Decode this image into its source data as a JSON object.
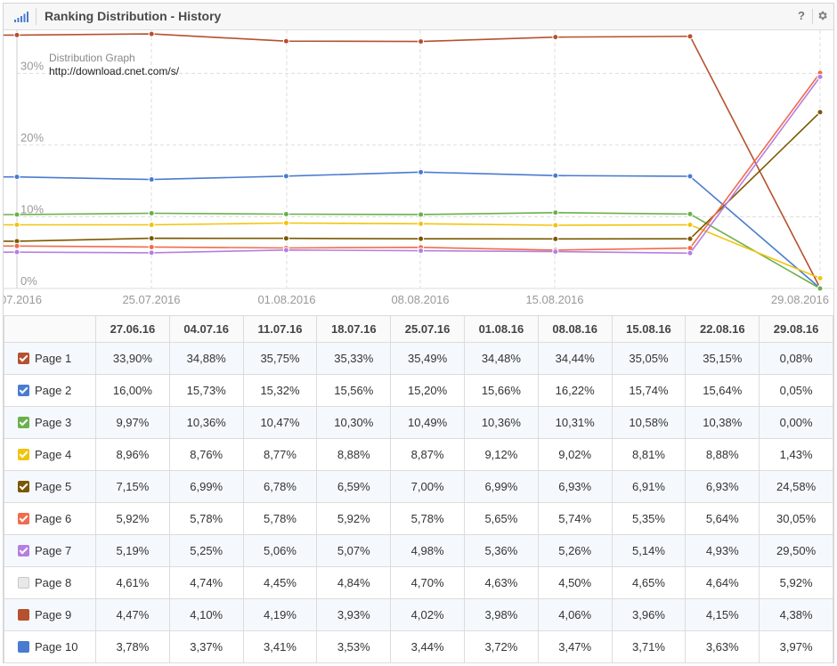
{
  "header": {
    "title": "Ranking Distribution - History",
    "help_label": "?",
    "icons": [
      "bar-signal-icon",
      "gear-icon"
    ]
  },
  "chart_data": {
    "type": "line",
    "annotation": [
      "Distribution Graph",
      "http://download.cnet.com/s/"
    ],
    "x_tick_labels": [
      "07.2016",
      "25.07.2016",
      "01.08.2016",
      "08.08.2016",
      "15.08.2016",
      "29.08.2016"
    ],
    "y_tick_labels": [
      "0%",
      "10%",
      "20%",
      "30%"
    ],
    "ylim": [
      0,
      36
    ],
    "grid": true,
    "categories": [
      "27.06.16",
      "04.07.16",
      "11.07.16",
      "18.07.16",
      "25.07.16",
      "01.08.16",
      "08.08.16",
      "15.08.16",
      "22.08.16",
      "29.08.16"
    ],
    "plotted_from_index": 3,
    "series": [
      {
        "name": "Page 1",
        "color": "#b5512f",
        "values": [
          33.9,
          34.88,
          35.75,
          35.33,
          35.49,
          34.48,
          34.44,
          35.05,
          35.15,
          0.08
        ]
      },
      {
        "name": "Page 2",
        "color": "#4a7bd0",
        "values": [
          16.0,
          15.73,
          15.32,
          15.56,
          15.2,
          15.66,
          16.22,
          15.74,
          15.64,
          0.05
        ]
      },
      {
        "name": "Page 3",
        "color": "#6ab04c",
        "values": [
          9.97,
          10.36,
          10.47,
          10.3,
          10.49,
          10.36,
          10.31,
          10.58,
          10.38,
          0.0
        ]
      },
      {
        "name": "Page 4",
        "color": "#f1c40f",
        "values": [
          8.96,
          8.76,
          8.77,
          8.88,
          8.87,
          9.12,
          9.02,
          8.81,
          8.88,
          1.43
        ]
      },
      {
        "name": "Page 5",
        "color": "#7a5800",
        "values": [
          7.15,
          6.99,
          6.78,
          6.59,
          7.0,
          6.99,
          6.93,
          6.91,
          6.93,
          24.58
        ]
      },
      {
        "name": "Page 6",
        "color": "#f26b4e",
        "values": [
          5.92,
          5.78,
          5.78,
          5.92,
          5.78,
          5.65,
          5.74,
          5.35,
          5.64,
          30.05
        ]
      },
      {
        "name": "Page 7",
        "color": "#b57fe0",
        "values": [
          5.19,
          5.25,
          5.06,
          5.07,
          4.98,
          5.36,
          5.26,
          5.14,
          4.93,
          29.5
        ]
      }
    ]
  },
  "table": {
    "dates": [
      "27.06.16",
      "04.07.16",
      "11.07.16",
      "18.07.16",
      "25.07.16",
      "01.08.16",
      "08.08.16",
      "15.08.16",
      "22.08.16",
      "29.08.16"
    ],
    "rows": [
      {
        "label": "Page 1",
        "color": "#b5512f",
        "checked": true,
        "values": [
          "33,90%",
          "34,88%",
          "35,75%",
          "35,33%",
          "35,49%",
          "34,48%",
          "34,44%",
          "35,05%",
          "35,15%",
          "0,08%"
        ]
      },
      {
        "label": "Page 2",
        "color": "#4a7bd0",
        "checked": true,
        "values": [
          "16,00%",
          "15,73%",
          "15,32%",
          "15,56%",
          "15,20%",
          "15,66%",
          "16,22%",
          "15,74%",
          "15,64%",
          "0,05%"
        ]
      },
      {
        "label": "Page 3",
        "color": "#6ab04c",
        "checked": true,
        "values": [
          "9,97%",
          "10,36%",
          "10,47%",
          "10,30%",
          "10,49%",
          "10,36%",
          "10,31%",
          "10,58%",
          "10,38%",
          "0,00%"
        ]
      },
      {
        "label": "Page 4",
        "color": "#f1c40f",
        "checked": true,
        "values": [
          "8,96%",
          "8,76%",
          "8,77%",
          "8,88%",
          "8,87%",
          "9,12%",
          "9,02%",
          "8,81%",
          "8,88%",
          "1,43%"
        ]
      },
      {
        "label": "Page 5",
        "color": "#7a5800",
        "checked": true,
        "values": [
          "7,15%",
          "6,99%",
          "6,78%",
          "6,59%",
          "7,00%",
          "6,99%",
          "6,93%",
          "6,91%",
          "6,93%",
          "24,58%"
        ]
      },
      {
        "label": "Page 6",
        "color": "#f26b4e",
        "checked": true,
        "values": [
          "5,92%",
          "5,78%",
          "5,78%",
          "5,92%",
          "5,78%",
          "5,65%",
          "5,74%",
          "5,35%",
          "5,64%",
          "30,05%"
        ]
      },
      {
        "label": "Page 7",
        "color": "#b57fe0",
        "checked": true,
        "values": [
          "5,19%",
          "5,25%",
          "5,06%",
          "5,07%",
          "4,98%",
          "5,36%",
          "5,26%",
          "5,14%",
          "4,93%",
          "29,50%"
        ]
      },
      {
        "label": "Page 8",
        "color": "#e8e8e8",
        "checked": false,
        "values": [
          "4,61%",
          "4,74%",
          "4,45%",
          "4,84%",
          "4,70%",
          "4,63%",
          "4,50%",
          "4,65%",
          "4,64%",
          "5,92%"
        ]
      },
      {
        "label": "Page 9",
        "color": "#b5512f",
        "checked": false,
        "values": [
          "4,47%",
          "4,10%",
          "4,19%",
          "3,93%",
          "4,02%",
          "3,98%",
          "4,06%",
          "3,96%",
          "4,15%",
          "4,38%"
        ]
      },
      {
        "label": "Page 10",
        "color": "#4a7bd0",
        "checked": false,
        "values": [
          "3,78%",
          "3,37%",
          "3,41%",
          "3,53%",
          "3,44%",
          "3,72%",
          "3,47%",
          "3,71%",
          "3,63%",
          "3,97%"
        ]
      }
    ]
  }
}
